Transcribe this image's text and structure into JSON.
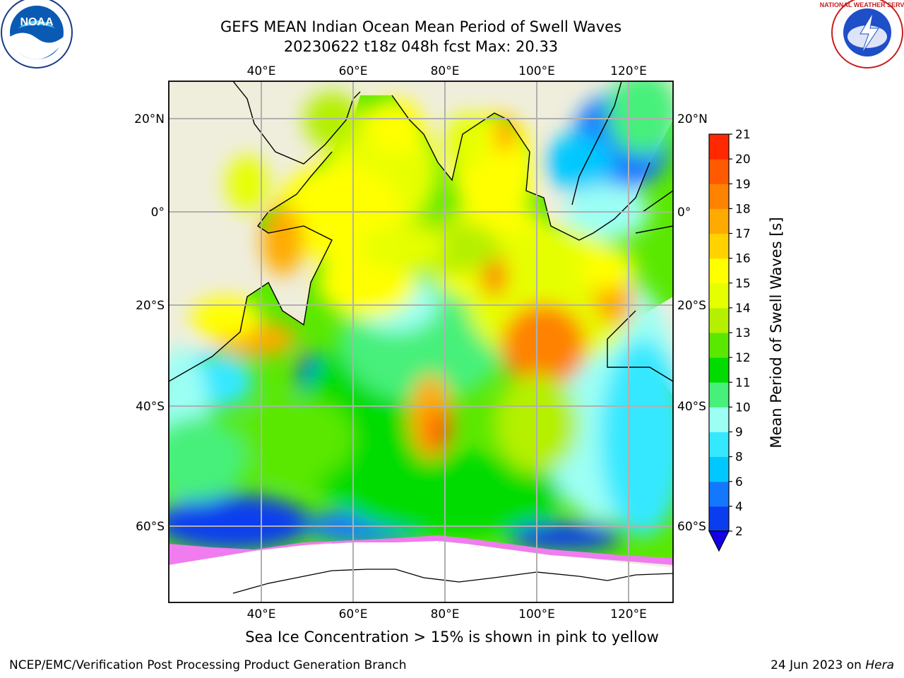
{
  "header": {
    "title_line1": "GEFS MEAN Indian Ocean Mean Period of Swell Waves",
    "title_line2": "20230622 t18z 048h fcst   Max: 20.33"
  },
  "logos": {
    "left": {
      "icon": "noaa-logo",
      "text": "NOAA"
    },
    "right": {
      "icon": "nws-logo",
      "ring_text": "NATIONAL WEATHER SERVICE"
    }
  },
  "map": {
    "lon_labels": [
      "40°E",
      "60°E",
      "80°E",
      "100°E",
      "120°E"
    ],
    "lat_labels": [
      "20°N",
      "0°",
      "20°S",
      "40°S",
      "60°S"
    ],
    "land_color": "#efeedc",
    "ice_colors": [
      "#f07cf0",
      "#ff66cc",
      "#ffb0b0",
      "#ffd040"
    ]
  },
  "colorbar": {
    "label": "Mean Period of Swell Waves [s]",
    "ticks": [
      "2",
      "4",
      "6",
      "8",
      "9",
      "10",
      "11",
      "12",
      "13",
      "14",
      "15",
      "16",
      "17",
      "18",
      "19",
      "20",
      "21"
    ],
    "colors": [
      "#0a3cf0",
      "#1478ff",
      "#00c8ff",
      "#34e8ff",
      "#9cfff4",
      "#46f07a",
      "#00dc00",
      "#5ae800",
      "#b4f000",
      "#e6ff00",
      "#ffff00",
      "#ffd200",
      "#ffaa00",
      "#ff8200",
      "#ff5a00",
      "#ff2800",
      "#f00000"
    ],
    "under_color": "#1400e6"
  },
  "notes": {
    "sea_ice": "Sea Ice Concentration > 15% is shown in pink to yellow"
  },
  "footer": {
    "left": "NCEP/EMC/Verification Post Processing Product Generation Branch",
    "right_date": "24 Jun 2023 on ",
    "right_machine": "Hera"
  }
}
